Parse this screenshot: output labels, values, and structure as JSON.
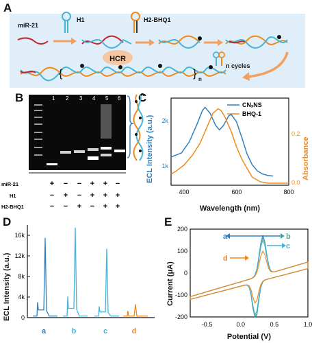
{
  "panels": {
    "A": "A",
    "B": "B",
    "C": "C",
    "D": "D",
    "E": "E"
  },
  "panelA": {
    "mir21": "miR-21",
    "h1": "H1",
    "h2": "H2-BHQ1",
    "hcr": "HCR",
    "cycles": "n cycles",
    "subscript_n": "n"
  },
  "panelB": {
    "lanes": [
      "1",
      "2",
      "3",
      "4",
      "5",
      "6"
    ],
    "rows": [
      {
        "label": "miR-21",
        "marks": [
          "+",
          "−",
          "−",
          "+",
          "+",
          "−"
        ]
      },
      {
        "label": "H1",
        "marks": [
          "−",
          "+",
          "−",
          "+",
          "+",
          "+"
        ]
      },
      {
        "label": "H2-BHQ1",
        "marks": [
          "−",
          "−",
          "+",
          "−",
          "+",
          "+"
        ]
      }
    ],
    "n_label": "n"
  },
  "colors": {
    "blue": "#2f7fbf",
    "orange": "#f08a1c",
    "cyan": "#47b4d6",
    "red": "#c0282d",
    "green": "#4aa59a"
  },
  "chart_data": [
    {
      "panel": "C",
      "type": "line",
      "xlabel": "Wavelength (nm)",
      "ylabel": "ECL Intensity (a.u.)",
      "y2label": "Absorbance",
      "xlim": [
        350,
        800
      ],
      "xticks": [
        "400",
        "600",
        "800"
      ],
      "yticks": [
        "1k",
        "2k"
      ],
      "y2ticks": [
        "0.0",
        "0.2"
      ],
      "series": [
        {
          "name": "CNₓNS",
          "axis": "left",
          "x": [
            350,
            390,
            420,
            450,
            470,
            480,
            500,
            520,
            535,
            550,
            570,
            580,
            600,
            620,
            640,
            660,
            680,
            700,
            720,
            740
          ],
          "y": [
            1350,
            1430,
            1650,
            2000,
            2260,
            2320,
            2200,
            1970,
            1880,
            1960,
            2150,
            2180,
            2040,
            1740,
            1420,
            1200,
            1080,
            1020,
            990,
            980
          ]
        },
        {
          "name": "BHQ-1",
          "axis": "right",
          "x": [
            350,
            370,
            400,
            430,
            460,
            490,
            510,
            530,
            540,
            555,
            580,
            600,
            620,
            640,
            660,
            690,
            720,
            760,
            800
          ],
          "y": [
            0.03,
            0.04,
            0.06,
            0.09,
            0.13,
            0.19,
            0.23,
            0.245,
            0.24,
            0.22,
            0.17,
            0.12,
            0.08,
            0.05,
            0.02,
            0.005,
            0.0,
            0.0,
            0.0
          ]
        }
      ]
    },
    {
      "panel": "D",
      "type": "line",
      "xlabel": "",
      "ylabel": "ECL Intensity (a.u.)",
      "yticks": [
        "0",
        "4k",
        "8k",
        "12k",
        "16k"
      ],
      "ylim": [
        0,
        18000
      ],
      "categories": [
        "a",
        "b",
        "c",
        "d"
      ],
      "series": [
        {
          "name": "a",
          "peak_main": 15500,
          "peak_side": 3000,
          "base": 1500
        },
        {
          "name": "b",
          "peak_main": 17500,
          "peak_side": 4100,
          "base": 1800
        },
        {
          "name": "c",
          "peak_main": 13400,
          "peak_side": 2200,
          "base": 1100
        },
        {
          "name": "d",
          "peak_main": 2600,
          "peak_side": 1300,
          "base": 300
        }
      ]
    },
    {
      "panel": "E",
      "type": "line",
      "xlabel": "Potential (V)",
      "ylabel": "Current (μA)",
      "xlim": [
        -0.75,
        1.0
      ],
      "ylim": [
        -200,
        200
      ],
      "xticks": [
        "-0.5",
        "0.0",
        "0.5",
        "1.0"
      ],
      "yticks": [
        "-200",
        "-100",
        "0",
        "100",
        "200"
      ],
      "series": [
        {
          "name": "a",
          "anodic_peak": 180,
          "cathodic_peak": -170
        },
        {
          "name": "b",
          "anodic_peak": 175,
          "cathodic_peak": -165
        },
        {
          "name": "c",
          "anodic_peak": 160,
          "cathodic_peak": -150
        },
        {
          "name": "d",
          "anodic_peak": 110,
          "cathodic_peak": -95
        }
      ]
    }
  ]
}
